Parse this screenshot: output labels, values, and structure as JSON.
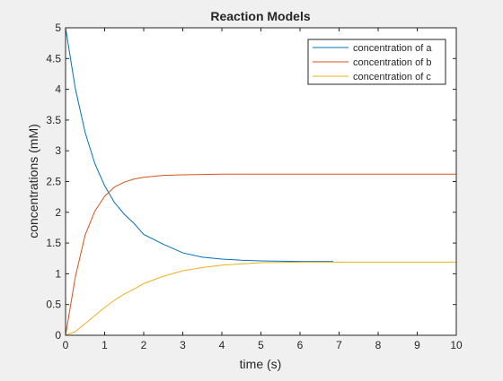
{
  "chart_data": {
    "type": "line",
    "title": "Reaction Models",
    "xlabel": "time (s)",
    "ylabel": "concentrations (mM)",
    "xlim": [
      0,
      10
    ],
    "ylim": [
      0,
      5
    ],
    "xticks": [
      "0",
      "1",
      "2",
      "3",
      "4",
      "5",
      "6",
      "7",
      "8",
      "9",
      "10"
    ],
    "yticks": [
      "0",
      "0.5",
      "1",
      "1.5",
      "2",
      "2.5",
      "3",
      "3.5",
      "4",
      "4.5",
      "5"
    ],
    "grid": false,
    "legend_position": "top-right",
    "x": [
      0,
      0.25,
      0.5,
      0.75,
      1,
      1.25,
      1.5,
      1.75,
      2,
      2.5,
      3,
      3.5,
      4,
      4.5,
      5,
      5.5,
      6,
      6.5,
      6.85,
      7,
      8,
      9,
      10
    ],
    "series": [
      {
        "name": "concentration of a",
        "color": "#0072BD",
        "values": [
          5.0,
          4.01,
          3.3,
          2.79,
          2.43,
          2.16,
          1.97,
          1.82,
          1.64,
          1.48,
          1.34,
          1.27,
          1.24,
          1.22,
          1.21,
          1.205,
          1.2,
          1.2,
          1.2,
          null,
          null,
          null,
          null
        ]
      },
      {
        "name": "concentration of b",
        "color": "#D95319",
        "values": [
          0,
          0.95,
          1.63,
          2.02,
          2.26,
          2.41,
          2.49,
          2.54,
          2.57,
          2.6,
          2.61,
          2.615,
          2.62,
          2.62,
          2.62,
          2.62,
          2.62,
          2.62,
          2.62,
          2.62,
          2.62,
          2.62,
          2.62
        ]
      },
      {
        "name": "concentration of c",
        "color": "#EDB120",
        "values": [
          0,
          0.06,
          0.19,
          0.32,
          0.45,
          0.57,
          0.67,
          0.75,
          0.84,
          0.96,
          1.05,
          1.1,
          1.14,
          1.16,
          1.18,
          1.185,
          1.19,
          1.19,
          1.19,
          1.19,
          1.19,
          1.19,
          1.19
        ]
      }
    ]
  }
}
